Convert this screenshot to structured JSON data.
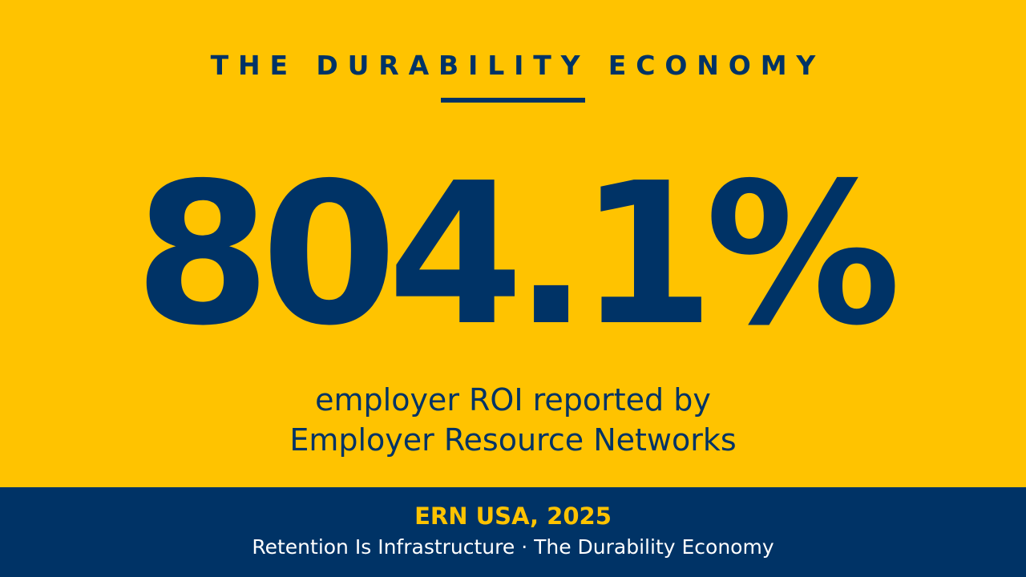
{
  "header": {
    "title": "THE DURABILITY ECONOMY"
  },
  "stat": {
    "value": "804.1%",
    "caption_lines": [
      "employer ROI reported by",
      "Employer Resource Networks"
    ]
  },
  "footer": {
    "source": "ERN USA, 2025",
    "tagline": "Retention Is Infrastructure · The Durability Economy"
  }
}
